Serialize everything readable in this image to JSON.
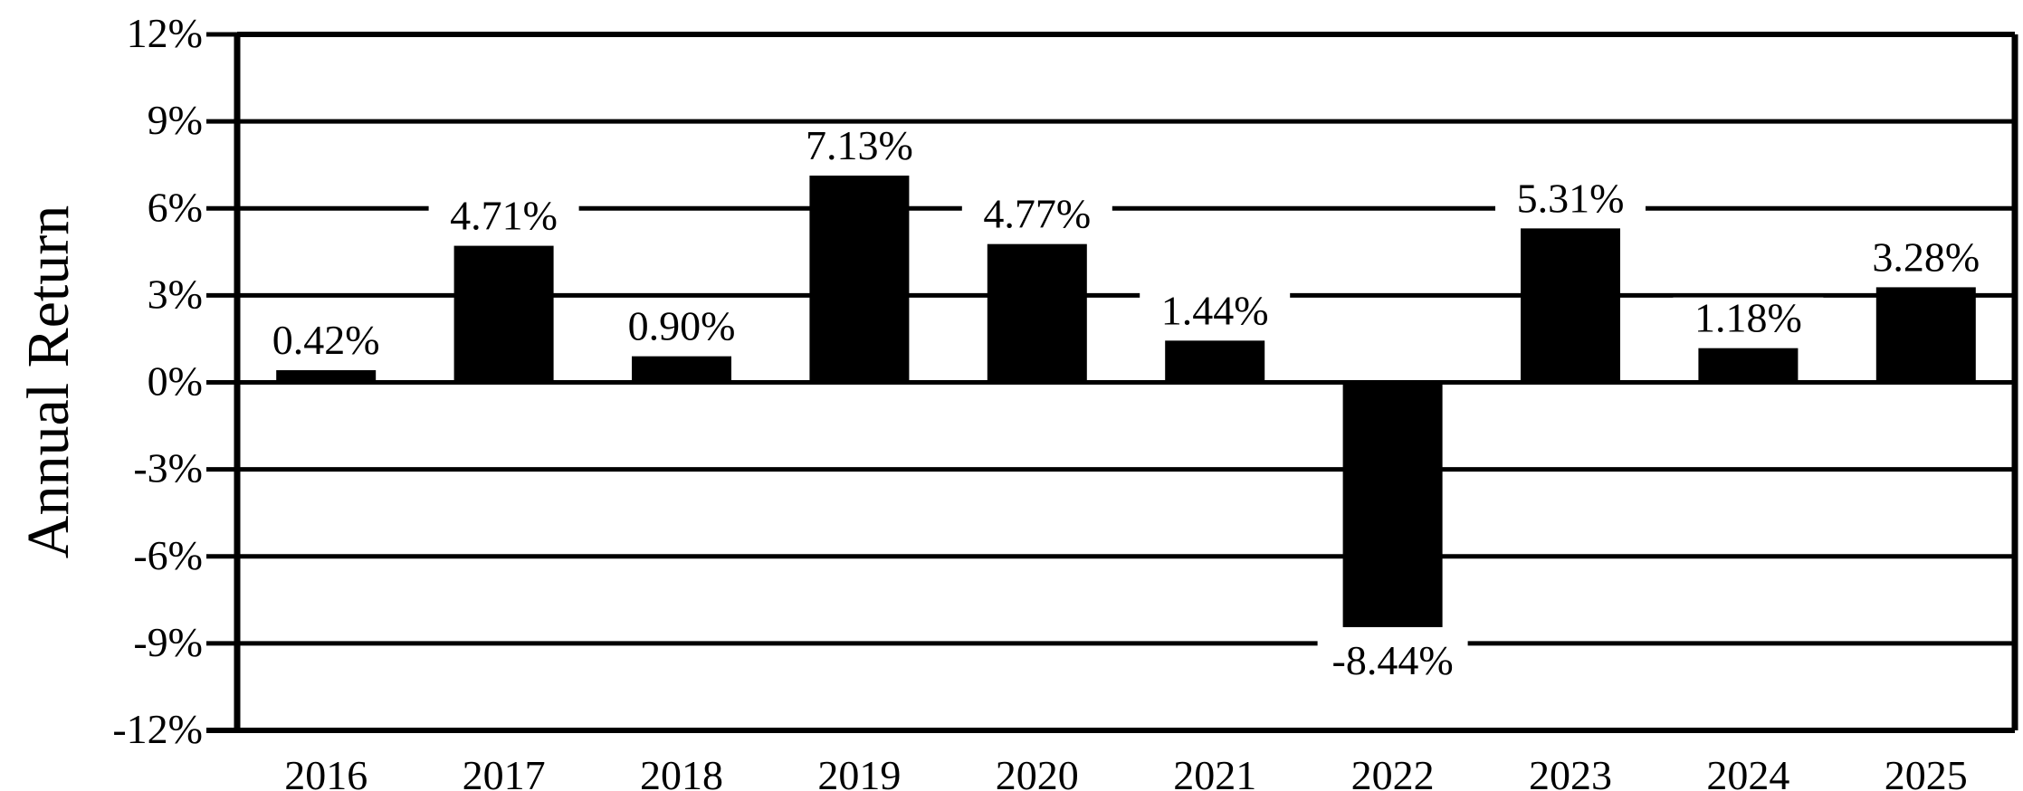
{
  "chart_data": {
    "type": "bar",
    "title": "",
    "xlabel": "",
    "ylabel": "Annual Return",
    "categories": [
      "2016",
      "2017",
      "2018",
      "2019",
      "2020",
      "2021",
      "2022",
      "2023",
      "2024",
      "2025"
    ],
    "values": [
      0.42,
      4.71,
      0.9,
      7.13,
      4.77,
      1.44,
      -8.44,
      5.31,
      1.18,
      3.28
    ],
    "data_labels": [
      "0.42%",
      "4.71%",
      "0.90%",
      "7.13%",
      "4.77%",
      "1.44%",
      "-8.44%",
      "5.31%",
      "1.18%",
      "3.28%"
    ],
    "ylim": [
      -12,
      12
    ],
    "yticks": [
      12,
      9,
      6,
      3,
      0,
      -3,
      -6,
      -9,
      -12
    ],
    "ytick_labels": [
      "12%",
      "9%",
      "6%",
      "3%",
      "0%",
      "-3%",
      "-6%",
      "-9%",
      "-12%"
    ],
    "grid": true,
    "legend": "none",
    "bar_color": "#000000"
  }
}
